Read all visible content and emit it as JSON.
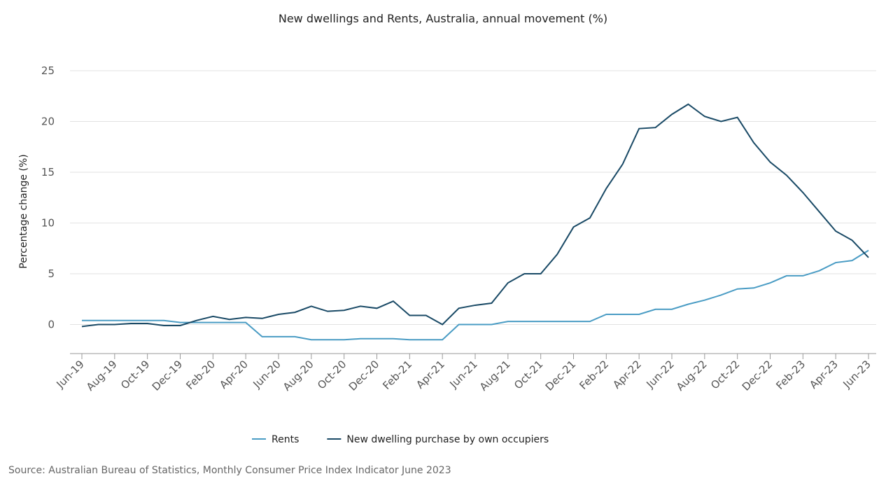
{
  "chart_data": {
    "type": "line",
    "title": "New dwellings and Rents, Australia, annual movement (%)",
    "y_label": "Percentage change (%)",
    "source": "Source: Australian Bureau of Statistics, Monthly Consumer Price Index Indicator June 2023",
    "categories": [
      "Jun-19",
      null,
      "Aug-19",
      null,
      "Oct-19",
      null,
      "Dec-19",
      null,
      "Feb-20",
      null,
      "Apr-20",
      null,
      "Jun-20",
      null,
      "Aug-20",
      null,
      "Oct-20",
      null,
      "Dec-20",
      null,
      "Feb-21",
      null,
      "Apr-21",
      null,
      "Jun-21",
      null,
      "Aug-21",
      null,
      "Oct-21",
      null,
      "Dec-21",
      null,
      "Feb-22",
      null,
      "Apr-22",
      null,
      "Jun-22",
      null,
      "Aug-22",
      null,
      "Oct-22",
      null,
      "Dec-22",
      null,
      "Feb-23",
      null,
      "Apr-23",
      null,
      "Jun-23"
    ],
    "series": [
      {
        "name": "Rents",
        "color": "#4a9cc4",
        "values": [
          0.4,
          0.4,
          0.4,
          0.4,
          0.4,
          0.4,
          0.2,
          0.2,
          0.2,
          0.2,
          0.2,
          -1.2,
          -1.2,
          -1.2,
          -1.5,
          -1.5,
          -1.5,
          -1.4,
          -1.4,
          -1.4,
          -1.5,
          -1.5,
          -1.5,
          0,
          0,
          0,
          0.3,
          0.3,
          0.3,
          0.3,
          0.3,
          0.3,
          1,
          1,
          1,
          1.5,
          1.5,
          2,
          2.4,
          2.9,
          3.5,
          3.6,
          4.1,
          4.8,
          4.8,
          5.3,
          6.1,
          6.3,
          7.3
        ]
      },
      {
        "name": "New dwelling purchase by own occupiers",
        "color": "#1a4a66",
        "values": [
          -0.2,
          0,
          0,
          0.1,
          0.1,
          -0.1,
          -0.1,
          0.4,
          0.8,
          0.5,
          0.7,
          0.6,
          1.0,
          1.2,
          1.8,
          1.3,
          1.4,
          1.8,
          1.6,
          2.3,
          0.9,
          0.9,
          0,
          1.6,
          1.9,
          2.1,
          4.1,
          5.0,
          5.0,
          6.9,
          9.6,
          10.5,
          13.4,
          15.8,
          19.3,
          19.4,
          20.7,
          21.7,
          20.5,
          20.0,
          20.4,
          17.9,
          16.0,
          14.7,
          13.0,
          11.1,
          9.2,
          8.3,
          6.6
        ]
      }
    ],
    "ylim": [
      -3,
      25
    ],
    "yticks": [
      0,
      5,
      10,
      15,
      20,
      25
    ],
    "grid": true,
    "legend": "bottom"
  }
}
